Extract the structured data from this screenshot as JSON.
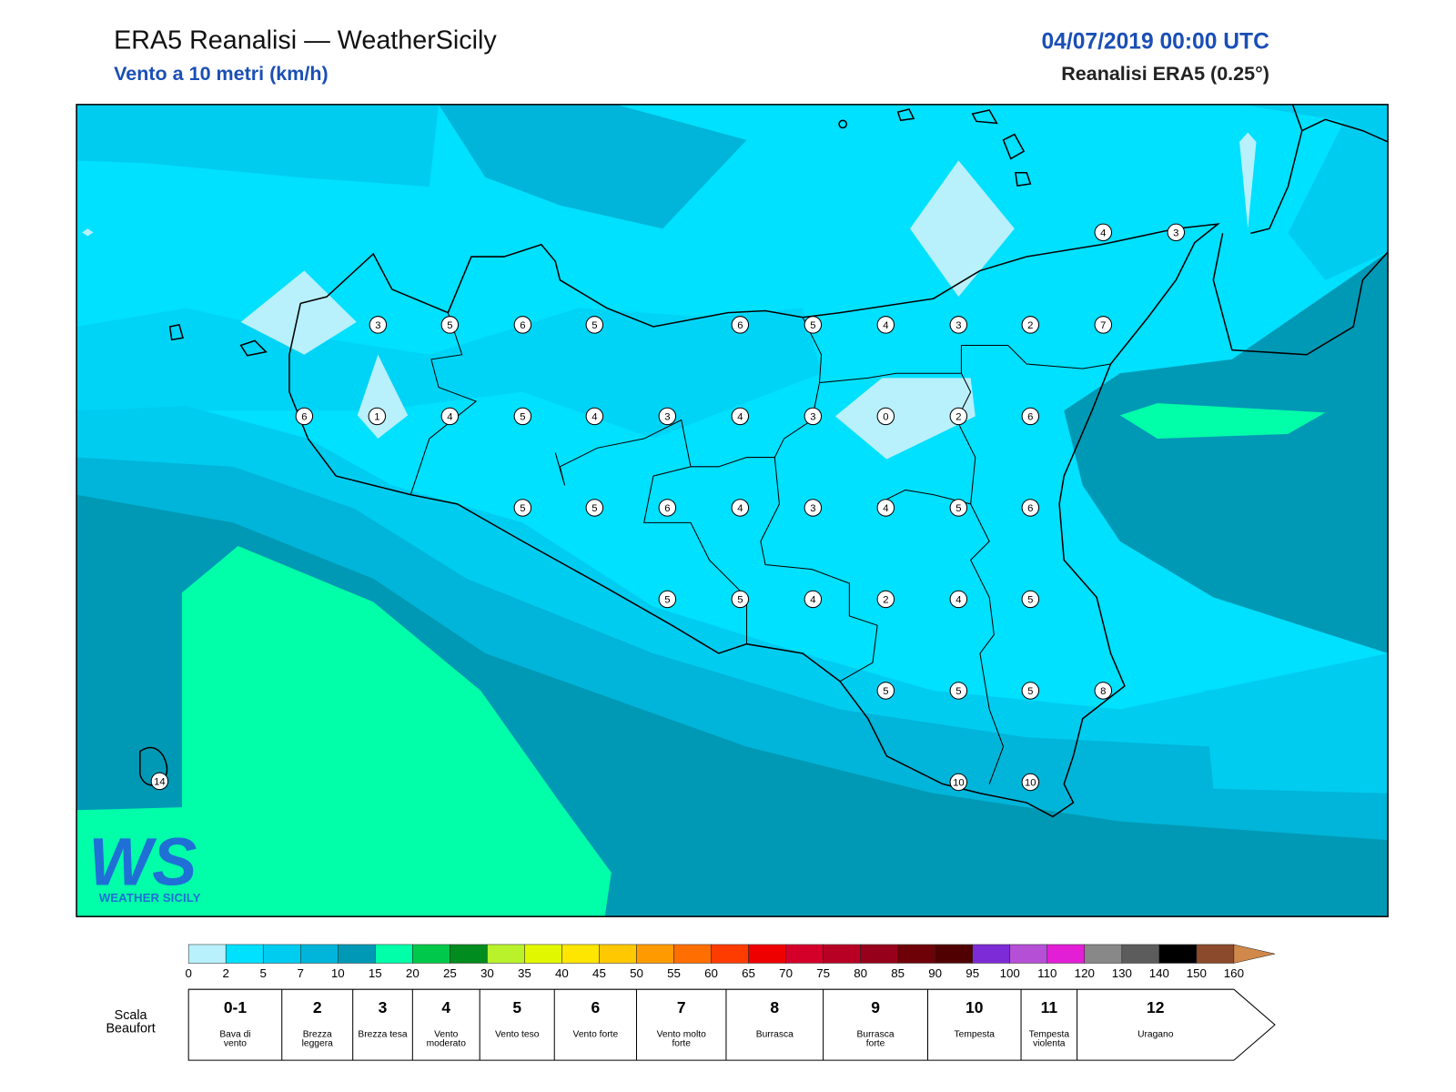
{
  "header": {
    "title": "ERA5 Reanalisi — WeatherSicily",
    "subtitle": "Vento a 10 metri (km/h)",
    "datetime": "04/07/2019 00:00 UTC",
    "source": "Reanalisi ERA5 (0.25°)"
  },
  "logo": {
    "mark": "WS",
    "text": "WEATHER SICILY"
  },
  "stations": [
    4,
    3,
    3,
    5,
    6,
    5,
    6,
    5,
    4,
    3,
    2,
    7,
    6,
    1,
    4,
    5,
    4,
    3,
    4,
    3,
    0,
    2,
    6,
    5,
    5,
    6,
    4,
    3,
    4,
    5,
    6,
    5,
    5,
    4,
    2,
    4,
    5,
    5,
    5,
    5,
    8,
    10,
    10,
    14
  ],
  "colorbar": {
    "ticks": [
      0,
      2,
      5,
      7,
      10,
      15,
      20,
      25,
      30,
      35,
      40,
      45,
      50,
      55,
      60,
      65,
      70,
      75,
      80,
      85,
      90,
      95,
      100,
      110,
      120,
      130,
      140,
      150,
      160
    ],
    "colors": [
      "#b8f0fb",
      "#00e0ff",
      "#00ccf0",
      "#00b5d9",
      "#0099b5",
      "#00ffa8",
      "#00c84b",
      "#008c1e",
      "#b9f22b",
      "#e1f700",
      "#ffe600",
      "#ffc800",
      "#ff9b00",
      "#ff6e00",
      "#ff3c00",
      "#ee0000",
      "#d4002a",
      "#b80024",
      "#96001a",
      "#6e0008",
      "#500000",
      "#7d2bd6",
      "#b44fd6",
      "#e21fd5",
      "#888888",
      "#5c5c5c",
      "#000000",
      "#8b4a2b",
      "#c8804a"
    ],
    "over_color": "#d0894a"
  },
  "beaufort": {
    "label": "Scala Beaufort",
    "levels": [
      {
        "force": "0-1",
        "description": "Bava di vento"
      },
      {
        "force": "2",
        "description": "Brezza leggera"
      },
      {
        "force": "3",
        "description": "Brezza tesa"
      },
      {
        "force": "4",
        "description": "Vento moderato"
      },
      {
        "force": "5",
        "description": "Vento teso"
      },
      {
        "force": "6",
        "description": "Vento forte"
      },
      {
        "force": "7",
        "description": "Vento molto forte"
      },
      {
        "force": "8",
        "description": "Burrasca"
      },
      {
        "force": "9",
        "description": "Burrasca forte"
      },
      {
        "force": "10",
        "description": "Tempesta"
      },
      {
        "force": "11",
        "description": "Tempesta violenta"
      },
      {
        "force": "12",
        "description": "Uragano"
      }
    ]
  }
}
